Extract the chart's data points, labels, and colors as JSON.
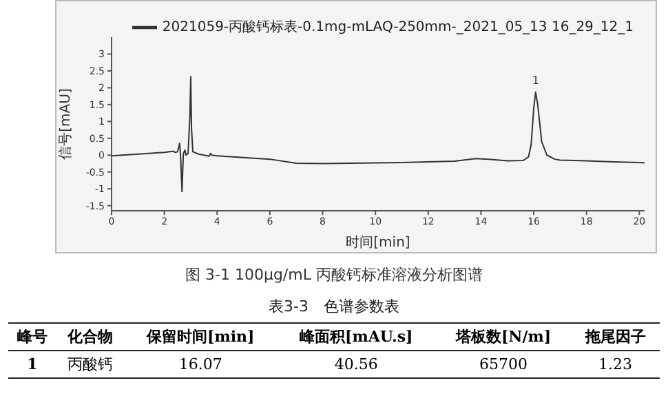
{
  "chart_data": {
    "type": "line",
    "xlabel": "时间[min]",
    "ylabel": "信号[mAU]",
    "x": [
      0,
      1,
      2,
      2.35,
      2.4,
      2.5,
      2.58,
      2.62,
      2.67,
      2.72,
      2.78,
      2.82,
      2.9,
      2.97,
      3.0,
      3.03,
      3.08,
      3.3,
      3.7,
      3.75,
      3.8,
      4,
      5,
      6,
      7,
      8,
      9,
      10,
      11,
      12,
      13,
      13.8,
      14.3,
      15,
      15.6,
      15.8,
      15.9,
      16,
      16.07,
      16.15,
      16.3,
      16.5,
      16.8,
      17,
      18,
      19,
      20,
      20.2
    ],
    "series": [
      {
        "name": "2021059-丙酸钙标表-0.1mg-mLAQ-250mm-_2021_05_13 16_29_12_1",
        "color": "#333333",
        "values": [
          -0.02,
          0.03,
          0.08,
          0.12,
          0.08,
          0.1,
          0.35,
          -0.1,
          -1.08,
          0.05,
          0.15,
          0.0,
          0.05,
          1.2,
          2.33,
          0.8,
          0.1,
          0.03,
          -0.03,
          0.05,
          0.0,
          -0.02,
          -0.07,
          -0.12,
          -0.24,
          -0.25,
          -0.24,
          -0.23,
          -0.22,
          -0.2,
          -0.18,
          -0.1,
          -0.12,
          -0.17,
          -0.16,
          -0.05,
          0.3,
          1.4,
          1.87,
          1.5,
          0.4,
          0.0,
          -0.12,
          -0.15,
          -0.17,
          -0.2,
          -0.22,
          -0.23
        ]
      }
    ],
    "xlim": [
      0,
      20.2
    ],
    "xticks": [
      0,
      2,
      4,
      6,
      8,
      10,
      12,
      14,
      16,
      18,
      20
    ],
    "ylim": [
      -1.65,
      3.5
    ],
    "yticks": [
      -1.5,
      -1,
      -0.5,
      0,
      0.5,
      1,
      1.5,
      2,
      2.5,
      3
    ],
    "grid": false,
    "legend": "top right",
    "marker": "none",
    "line_style": "solid",
    "annotations": [
      {
        "text": "1",
        "x": 16.07,
        "y": 1.87
      },
      "图 3-1 100μg/mL 丙酸钙标准溶液分析图谱",
      "表3-3　色谱参数表",
      "峰号",
      "化合物",
      "保留时间[min]",
      "峰面积[mAU.s]",
      "塔板数[N/m]",
      "拖尾因子",
      "1",
      "丙酸钙",
      "16.07",
      "40.56",
      "65700",
      "1.23"
    ]
  }
}
